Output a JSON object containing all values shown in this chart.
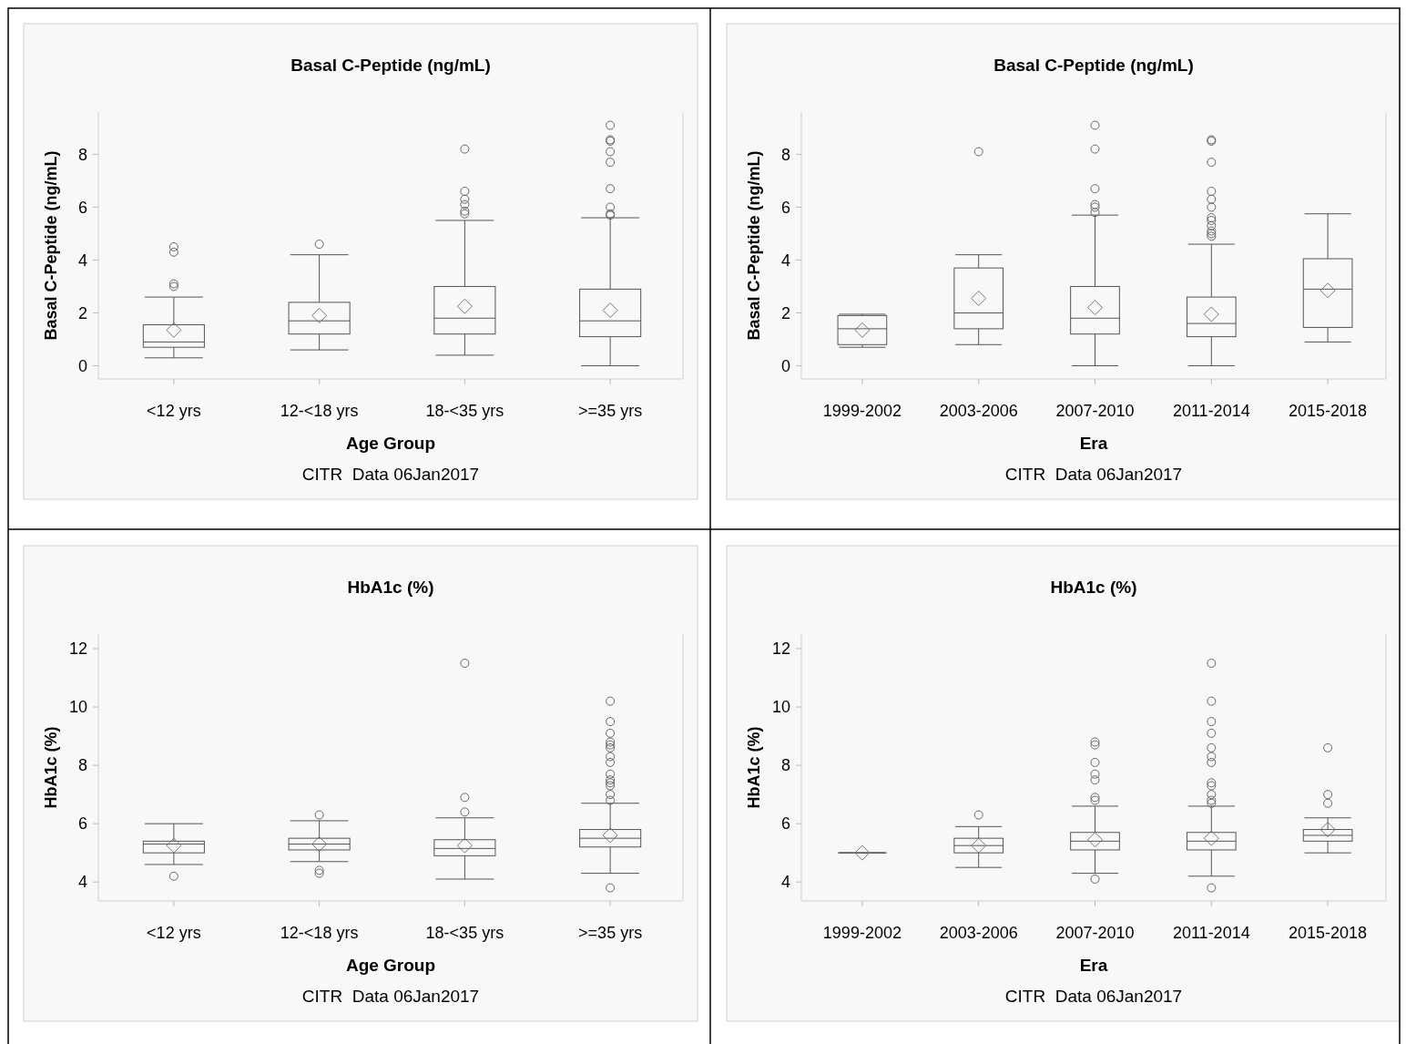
{
  "chart_data": [
    {
      "type": "box",
      "title": "Basal C-Peptide (ng/mL)",
      "ylabel": "Basal C-Peptide (ng/mL)",
      "xlabel": "Age Group",
      "annotations": [
        "CITR  Data 06Jan2017"
      ],
      "categories": [
        "<12 yrs",
        "12-<18 yrs",
        "18-<35 yrs",
        ">=35 yrs"
      ],
      "ylim": [
        -0.5,
        9.6
      ],
      "yticks": [
        0,
        2,
        4,
        6,
        8
      ],
      "boxes": [
        {
          "low": 0.3,
          "q1": 0.7,
          "median": 0.9,
          "q3": 1.55,
          "high": 2.6,
          "mean": 1.35,
          "outliers": [
            3.0,
            3.1,
            4.3,
            4.5
          ]
        },
        {
          "low": 0.6,
          "q1": 1.2,
          "median": 1.7,
          "q3": 2.4,
          "high": 4.2,
          "mean": 1.9,
          "outliers": [
            4.6
          ]
        },
        {
          "low": 0.4,
          "q1": 1.2,
          "median": 1.8,
          "q3": 3.0,
          "high": 5.5,
          "mean": 2.25,
          "outliers": [
            5.75,
            5.85,
            6.1,
            6.3,
            6.6,
            8.2
          ]
        },
        {
          "low": 0,
          "q1": 1.1,
          "median": 1.7,
          "q3": 2.9,
          "high": 5.6,
          "mean": 2.1,
          "outliers": [
            5.7,
            5.75,
            6.0,
            6.7,
            7.7,
            8.1,
            8.5,
            8.55,
            9.1
          ]
        }
      ]
    },
    {
      "type": "box",
      "title": "Basal C-Peptide (ng/mL)",
      "ylabel": "Basal C-Peptide (ng/mL)",
      "xlabel": "Era",
      "annotations": [
        "CITR  Data 06Jan2017"
      ],
      "categories": [
        "1999-2002",
        "2003-2006",
        "2007-2010",
        "2011-2014",
        "2015-2018"
      ],
      "ylim": [
        -0.5,
        9.6
      ],
      "yticks": [
        0,
        2,
        4,
        6,
        8
      ],
      "boxes": [
        {
          "low": 0.7,
          "q1": 0.8,
          "median": 1.4,
          "q3": 1.9,
          "high": 1.95,
          "mean": 1.35
        },
        {
          "low": 0.8,
          "q1": 1.4,
          "median": 2.0,
          "q3": 3.7,
          "high": 4.2,
          "mean": 2.55,
          "outliers": [
            8.1
          ]
        },
        {
          "low": 0,
          "q1": 1.2,
          "median": 1.8,
          "q3": 3.0,
          "high": 5.7,
          "mean": 2.2,
          "outliers": [
            5.8,
            6.0,
            6.1,
            6.7,
            8.2,
            9.1
          ]
        },
        {
          "low": 0,
          "q1": 1.1,
          "median": 1.6,
          "q3": 2.6,
          "high": 4.6,
          "mean": 1.95,
          "outliers": [
            4.9,
            5.0,
            5.1,
            5.3,
            5.5,
            5.6,
            6.0,
            6.3,
            6.6,
            7.7,
            8.5,
            8.55
          ]
        },
        {
          "low": 0.9,
          "q1": 1.45,
          "median": 2.9,
          "q3": 4.05,
          "high": 5.75,
          "mean": 2.85
        }
      ]
    },
    {
      "type": "box",
      "title": "HbA1c (%)",
      "ylabel": "HbA1c (%)",
      "xlabel": "Age Group",
      "annotations": [
        "CITR  Data 06Jan2017"
      ],
      "categories": [
        "<12 yrs",
        "12-<18 yrs",
        "18-<35 yrs",
        ">=35 yrs"
      ],
      "ylim": [
        3.35,
        12.5
      ],
      "yticks": [
        4,
        6,
        8,
        10,
        12
      ],
      "boxes": [
        {
          "low": 4.6,
          "q1": 5.0,
          "median": 5.3,
          "q3": 5.4,
          "high": 6.0,
          "mean": 5.25,
          "outliers": [
            4.2
          ]
        },
        {
          "low": 4.7,
          "q1": 5.1,
          "median": 5.3,
          "q3": 5.5,
          "high": 6.1,
          "mean": 5.3,
          "outliers": [
            4.3,
            4.4,
            6.3
          ]
        },
        {
          "low": 4.1,
          "q1": 4.9,
          "median": 5.15,
          "q3": 5.45,
          "high": 6.2,
          "mean": 5.25,
          "outliers": [
            6.4,
            6.9,
            11.5
          ]
        },
        {
          "low": 4.3,
          "q1": 5.2,
          "median": 5.5,
          "q3": 5.8,
          "high": 6.7,
          "mean": 5.6,
          "outliers": [
            3.8,
            6.8,
            7.0,
            7.3,
            7.4,
            7.5,
            7.7,
            8.1,
            8.3,
            8.6,
            8.7,
            8.8,
            9.1,
            9.5,
            10.2
          ]
        }
      ]
    },
    {
      "type": "box",
      "title": "HbA1c (%)",
      "ylabel": "HbA1c (%)",
      "xlabel": "Era",
      "annotations": [
        "CITR  Data 06Jan2017"
      ],
      "categories": [
        "1999-2002",
        "2003-2006",
        "2007-2010",
        "2011-2014",
        "2015-2018"
      ],
      "ylim": [
        3.35,
        12.5
      ],
      "yticks": [
        4,
        6,
        8,
        10,
        12
      ],
      "boxes": [
        {
          "low": 5.0,
          "q1": 5.0,
          "median": 5.0,
          "q3": 5.0,
          "high": 5.0,
          "mean": 5.0
        },
        {
          "low": 4.5,
          "q1": 5.0,
          "median": 5.25,
          "q3": 5.5,
          "high": 5.9,
          "mean": 5.25,
          "outliers": [
            6.3
          ]
        },
        {
          "low": 4.3,
          "q1": 5.1,
          "median": 5.4,
          "q3": 5.7,
          "high": 6.6,
          "mean": 5.45,
          "outliers": [
            4.1,
            6.8,
            6.9,
            7.5,
            7.7,
            8.1,
            8.7,
            8.8
          ]
        },
        {
          "low": 4.2,
          "q1": 5.1,
          "median": 5.4,
          "q3": 5.7,
          "high": 6.6,
          "mean": 5.5,
          "outliers": [
            3.8,
            6.7,
            6.8,
            7.0,
            7.3,
            7.4,
            8.1,
            8.3,
            8.6,
            9.1,
            9.5,
            10.2,
            11.5
          ]
        },
        {
          "low": 5.0,
          "q1": 5.4,
          "median": 5.6,
          "q3": 5.8,
          "high": 6.2,
          "mean": 5.8,
          "outliers": [
            6.7,
            7.0,
            8.6
          ]
        }
      ]
    }
  ]
}
